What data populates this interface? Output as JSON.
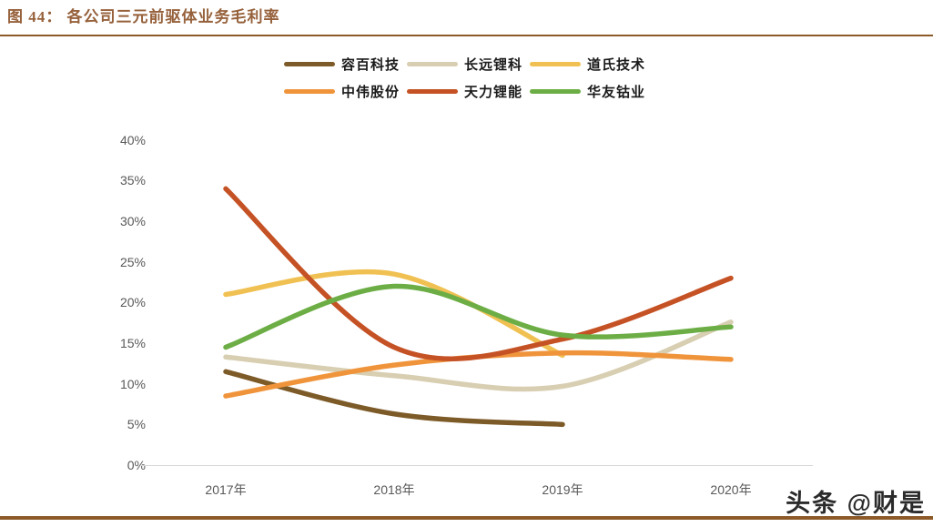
{
  "title": "图 44： 各公司三元前驱体业务毛利率",
  "watermark": "头条 @财是",
  "colors": {
    "title_text": "#96613B",
    "rule_brown": "#8C5A28",
    "axis_gray": "#D6D6D6",
    "tick_text": "#595959"
  },
  "chart_data": {
    "type": "line",
    "smooth": true,
    "grid": false,
    "legend_position": "top",
    "title": "各公司三元前驱体业务毛利率",
    "xlabel": "",
    "ylabel": "",
    "ylim": [
      0,
      40
    ],
    "y_ticks": [
      "0%",
      "5%",
      "10%",
      "15%",
      "20%",
      "25%",
      "30%",
      "35%",
      "40%"
    ],
    "categories": [
      "2017年",
      "2018年",
      "2019年",
      "2020年"
    ],
    "series": [
      {
        "name": "容百科技",
        "color": "#7D5B28",
        "values": [
          11.5,
          6.3,
          5,
          null
        ]
      },
      {
        "name": "长远锂科",
        "color": "#D8CEB2",
        "values": [
          13.3,
          11,
          9.7,
          17.6
        ]
      },
      {
        "name": "道氏技术",
        "color": "#F0C152",
        "values": [
          21,
          23.5,
          13.5,
          null
        ]
      },
      {
        "name": "中伟股份",
        "color": "#F0943C",
        "values": [
          8.5,
          12.3,
          13.8,
          13
        ]
      },
      {
        "name": "天力锂能",
        "color": "#C55225",
        "values": [
          34,
          14.5,
          15.5,
          23
        ]
      },
      {
        "name": "华友钴业",
        "color": "#6CAE45",
        "values": [
          14.5,
          22,
          16,
          17
        ]
      }
    ]
  }
}
